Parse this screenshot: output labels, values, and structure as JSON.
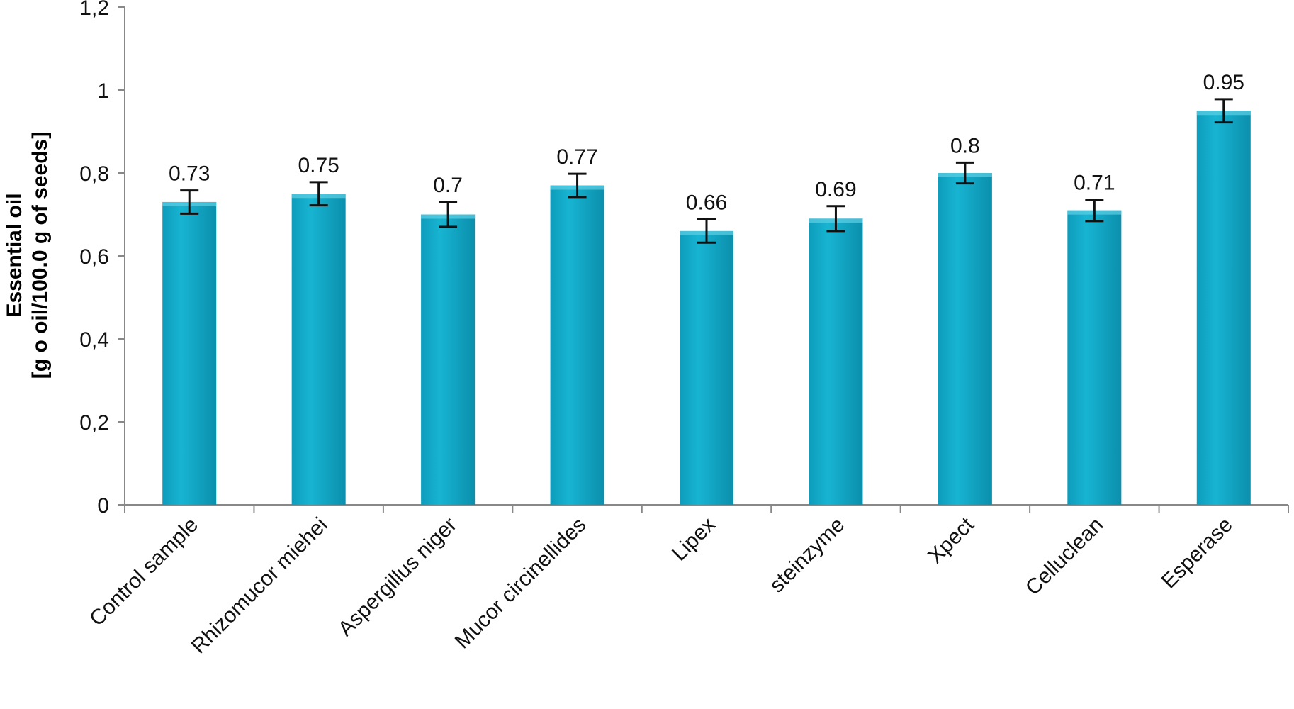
{
  "chart_data": {
    "type": "bar",
    "title": "",
    "xlabel": "",
    "ylabel": [
      "Essential oil",
      "[g o oil/100.0 g of seeds]"
    ],
    "categories": [
      "Control sample",
      "Rhizomucor miehei",
      "Aspergillus niger",
      "Mucor circinellides",
      "Lipex",
      "steinzyme",
      "Xpect",
      "Celluclean",
      "Esperase"
    ],
    "values": [
      0.73,
      0.75,
      0.7,
      0.77,
      0.66,
      0.69,
      0.8,
      0.71,
      0.95
    ],
    "value_labels": [
      "0.73",
      "0.75",
      "0.7",
      "0.77",
      "0.66",
      "0.69",
      "0.8",
      "0.71",
      "0.95"
    ],
    "error": [
      0.028,
      0.028,
      0.03,
      0.028,
      0.028,
      0.03,
      0.025,
      0.026,
      0.028
    ],
    "ylim": [
      0,
      1.2
    ],
    "yticks": [
      0,
      0.2,
      0.4,
      0.6,
      0.8,
      1,
      1.2
    ],
    "ytick_labels": [
      "0",
      "0,2",
      "0,4",
      "0,6",
      "0,8",
      "1",
      "1,2"
    ],
    "grid": false,
    "legend": "none",
    "bar_color": "#13aac8",
    "bar_color_dark": "#0c93b0"
  }
}
